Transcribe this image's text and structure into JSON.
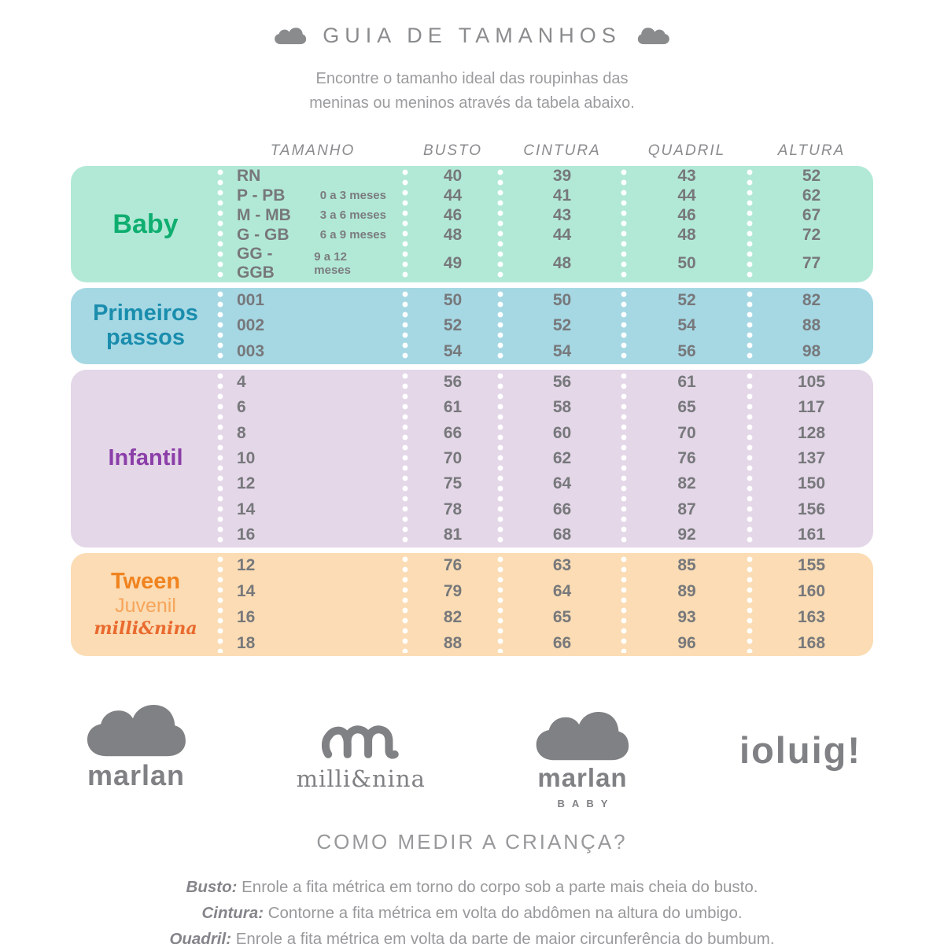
{
  "header": {
    "title": "GUIA DE TAMANHOS",
    "subtitle_line1": "Encontre o tamanho ideal das roupinhas das",
    "subtitle_line2": "meninas ou meninos através da tabela abaixo."
  },
  "chart_data": {
    "type": "table",
    "title": "GUIA DE TAMANHOS",
    "columns": [
      "TAMANHO",
      "BUSTO",
      "CINTURA",
      "QUADRIL",
      "ALTURA"
    ],
    "sections": [
      {
        "id": "baby",
        "bg": "#b2e9d6",
        "label_lines": [
          {
            "text": "Baby",
            "color": "#0fae70",
            "variant": "xl"
          }
        ],
        "rows": [
          {
            "tamanho": "RN",
            "meses": "",
            "busto": "40",
            "cintura": "39",
            "quadril": "43",
            "altura": "52"
          },
          {
            "tamanho": "P - PB",
            "meses": "0 a 3 meses",
            "busto": "44",
            "cintura": "41",
            "quadril": "44",
            "altura": "62"
          },
          {
            "tamanho": "M - MB",
            "meses": "3 a 6 meses",
            "busto": "46",
            "cintura": "43",
            "quadril": "46",
            "altura": "67"
          },
          {
            "tamanho": "G - GB",
            "meses": "6 a 9 meses",
            "busto": "48",
            "cintura": "44",
            "quadril": "48",
            "altura": "72"
          },
          {
            "tamanho": "GG - GGB",
            "meses": "9 a 12 meses",
            "busto": "49",
            "cintura": "48",
            "quadril": "50",
            "altura": "77"
          }
        ]
      },
      {
        "id": "primeiros-passos",
        "bg": "#a6d8e4",
        "label_lines": [
          {
            "text": "Primeiros",
            "color": "#1a8dad",
            "variant": "lg"
          },
          {
            "text": "passos",
            "color": "#1a8dad",
            "variant": "lg"
          }
        ],
        "rows": [
          {
            "tamanho": "001",
            "meses": "",
            "busto": "50",
            "cintura": "50",
            "quadril": "52",
            "altura": "82"
          },
          {
            "tamanho": "002",
            "meses": "",
            "busto": "52",
            "cintura": "52",
            "quadril": "54",
            "altura": "88"
          },
          {
            "tamanho": "003",
            "meses": "",
            "busto": "54",
            "cintura": "54",
            "quadril": "56",
            "altura": "98"
          }
        ]
      },
      {
        "id": "infantil",
        "bg": "#e4d7e8",
        "label_lines": [
          {
            "text": "Infantil",
            "color": "#8b3fa8",
            "variant": "lg"
          }
        ],
        "rows": [
          {
            "tamanho": "4",
            "meses": "",
            "busto": "56",
            "cintura": "56",
            "quadril": "61",
            "altura": "105"
          },
          {
            "tamanho": "6",
            "meses": "",
            "busto": "61",
            "cintura": "58",
            "quadril": "65",
            "altura": "117"
          },
          {
            "tamanho": "8",
            "meses": "",
            "busto": "66",
            "cintura": "60",
            "quadril": "70",
            "altura": "128"
          },
          {
            "tamanho": "10",
            "meses": "",
            "busto": "70",
            "cintura": "62",
            "quadril": "76",
            "altura": "137"
          },
          {
            "tamanho": "12",
            "meses": "",
            "busto": "75",
            "cintura": "64",
            "quadril": "82",
            "altura": "150"
          },
          {
            "tamanho": "14",
            "meses": "",
            "busto": "78",
            "cintura": "66",
            "quadril": "87",
            "altura": "156"
          },
          {
            "tamanho": "16",
            "meses": "",
            "busto": "81",
            "cintura": "68",
            "quadril": "92",
            "altura": "161"
          }
        ]
      },
      {
        "id": "tween",
        "bg": "#fbdcb4",
        "label_lines": [
          {
            "text": "Tween",
            "color": "#f0831f",
            "variant": "lg"
          },
          {
            "text": "Juvenil",
            "color": "#f6a55b",
            "variant": "md"
          },
          {
            "text": "milli&nina",
            "color": "#e96a2e",
            "variant": "script"
          }
        ],
        "rows": [
          {
            "tamanho": "12",
            "meses": "",
            "busto": "76",
            "cintura": "63",
            "quadril": "85",
            "altura": "155"
          },
          {
            "tamanho": "14",
            "meses": "",
            "busto": "79",
            "cintura": "64",
            "quadril": "89",
            "altura": "160"
          },
          {
            "tamanho": "16",
            "meses": "",
            "busto": "82",
            "cintura": "65",
            "quadril": "93",
            "altura": "163"
          },
          {
            "tamanho": "18",
            "meses": "",
            "busto": "88",
            "cintura": "66",
            "quadril": "96",
            "altura": "168"
          }
        ]
      }
    ]
  },
  "logos": {
    "marlan": {
      "word": "marlan"
    },
    "millinina": {
      "word": "milli&nina"
    },
    "marlan_baby": {
      "word": "marlan",
      "sub": "BABY"
    },
    "ioluigi": {
      "word": "ioluig!"
    },
    "gray": "#808184"
  },
  "footer": {
    "heading": "COMO MEDIR A CRIANÇA?",
    "instructions": [
      {
        "term": "Busto:",
        "text": "Enrole a fita métrica em torno do corpo sob a parte mais cheia do busto."
      },
      {
        "term": "Cintura:",
        "text": "Contorne a fita métrica em volta do abdômen na altura do umbigo."
      },
      {
        "term": "Quadril:",
        "text": "Enrole a fita métrica em volta da parte de maior circunferência do bumbum."
      }
    ]
  }
}
